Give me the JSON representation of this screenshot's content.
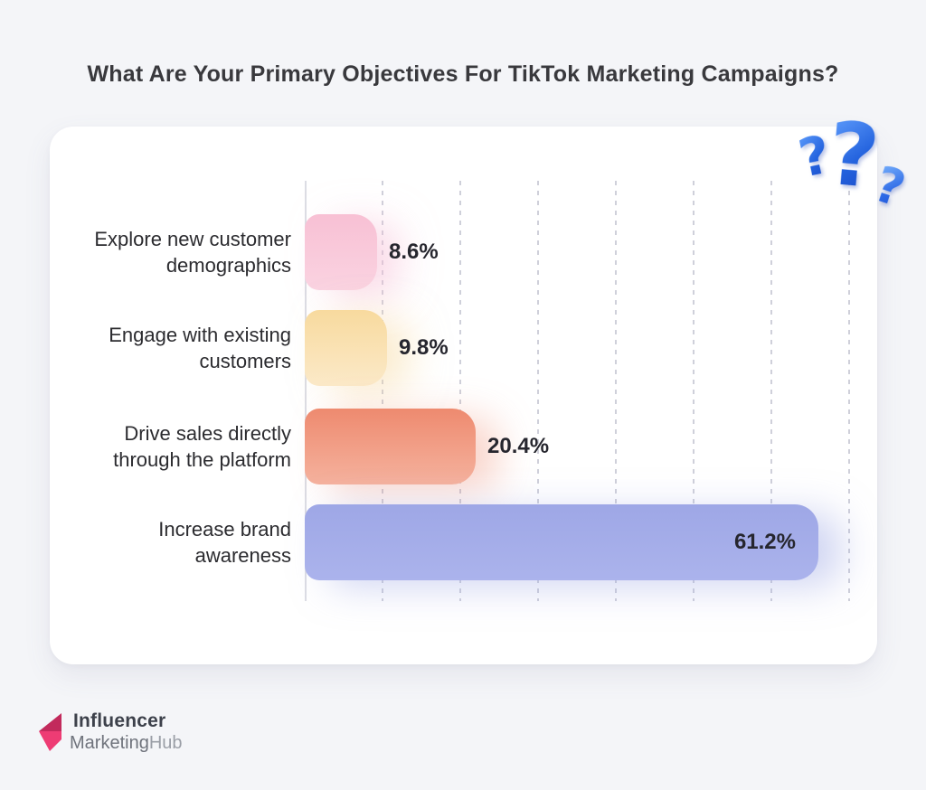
{
  "title": "What Are Your Primary Objectives For TikTok Marketing Campaigns?",
  "chart_data": {
    "type": "bar",
    "orientation": "horizontal",
    "title": "What Are Your Primary Objectives For TikTok Marketing Campaigns?",
    "categories": [
      "Explore new customer demographics",
      "Engage with existing customers",
      "Drive sales directly through the platform",
      "Increase brand awareness"
    ],
    "values": [
      8.6,
      9.8,
      20.4,
      61.2
    ],
    "value_labels": [
      "8.6%",
      "9.8%",
      "20.4%",
      "61.2%"
    ],
    "xlim": [
      0,
      67
    ],
    "grid": "vertical-dashed",
    "legend": "none",
    "rows": [
      {
        "label_lines": [
          "Explore new customer",
          "demographics"
        ],
        "value": 8.6,
        "value_label": "8.6%",
        "value_inside": false,
        "color_top": "#f8c0d4",
        "color_bottom": "#fad3e1",
        "glow": "rgba(246,186,212,0.55)"
      },
      {
        "label_lines": [
          "Engage with existing",
          "customers"
        ],
        "value": 9.8,
        "value_label": "9.8%",
        "value_inside": false,
        "color_top": "#f8da9e",
        "color_bottom": "#fbe9c8",
        "glow": "rgba(247,217,158,0.50)"
      },
      {
        "label_lines": [
          "Drive sales directly",
          "through the platform"
        ],
        "value": 20.4,
        "value_label": "20.4%",
        "value_inside": false,
        "color_top": "#ee8a6f",
        "color_bottom": "#f5b29e",
        "glow": "rgba(238,140,113,0.38)"
      },
      {
        "label_lines": [
          "Increase brand",
          "awareness"
        ],
        "value": 61.2,
        "value_label": "61.2%",
        "value_inside": true,
        "color_top": "#9ea7e6",
        "color_bottom": "#abb3ec",
        "glow": "rgba(160,169,230,0.50)"
      }
    ]
  },
  "illustration": {
    "marks": [
      "?",
      "?",
      "?"
    ]
  },
  "brand": {
    "line1": "Influencer",
    "line2_part1": "Marketing",
    "line2_part2": "Hub"
  },
  "colors": {
    "page_bg": "#f4f5f8",
    "card_bg": "#ffffff",
    "accent_blue": "#2b66e3",
    "brand_pink": "#ee3c74",
    "brand_pink_dark": "#c22a5c",
    "axis": "#dcdde4",
    "gridline": "#cfd0da"
  }
}
